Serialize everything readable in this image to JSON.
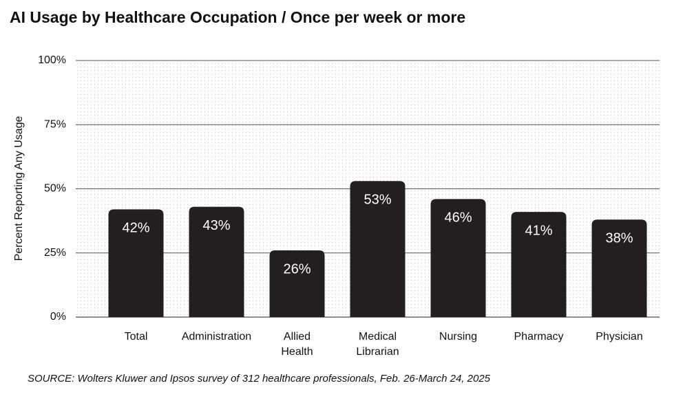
{
  "chart_data": {
    "type": "bar",
    "title": "AI Usage by Healthcare Occupation / Once per week or more",
    "y_label": "Percent Reporting Any Usage",
    "source": "SOURCE: Wolters Kluwer and Ipsos survey of 312 healthcare professionals, Feb. 26-March 24, 2025",
    "categories": [
      "Total",
      "Administration",
      "Allied Health",
      "Medical Librarian",
      "Nursing",
      "Pharmacy",
      "Physician"
    ],
    "values": [
      42,
      43,
      26,
      53,
      46,
      41,
      38
    ],
    "value_labels": [
      "42%",
      "43%",
      "26%",
      "53%",
      "46%",
      "41%",
      "38%"
    ],
    "color": "#231f20",
    "ylim": [
      0,
      100
    ],
    "yticks": [
      {
        "value": 0,
        "label": "0%"
      },
      {
        "value": 25,
        "label": "25%"
      },
      {
        "value": 50,
        "label": "50%"
      },
      {
        "value": 75,
        "label": "75%"
      },
      {
        "value": 100,
        "label": "100%"
      }
    ],
    "grid": true
  }
}
